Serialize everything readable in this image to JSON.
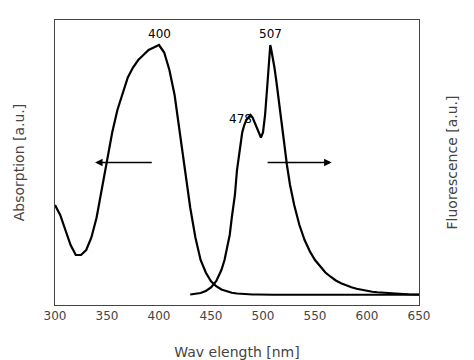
{
  "chart_data": {
    "type": "line",
    "xlabel": "Wav elength [nm]",
    "ylabel": "Absorption [a.u.]",
    "y2label": "Fluorescence [a.u.]",
    "xlim": [
      300,
      650
    ],
    "xticks": [
      300,
      350,
      400,
      450,
      500,
      550,
      600,
      650
    ],
    "ylim": [
      -0.04,
      1.1
    ],
    "yticks": [],
    "y2lim": [
      -0.04,
      1.1
    ],
    "y2ticks": [],
    "tick_labels": "x",
    "grid": false,
    "series": [
      {
        "color": "#000000",
        "x": [
          300,
          305,
          310,
          315,
          320,
          325,
          330,
          335,
          340,
          345,
          350,
          355,
          360,
          365,
          370,
          375,
          380,
          385,
          390,
          395,
          400,
          405,
          410,
          415,
          420,
          425,
          430,
          435,
          440,
          445,
          450,
          455,
          460,
          465,
          470,
          475,
          480,
          485,
          490,
          495,
          500,
          505,
          510,
          520,
          530,
          540,
          550,
          560,
          570,
          580,
          590,
          600,
          610,
          620,
          630,
          640,
          650
        ],
        "values": [
          0.36,
          0.32,
          0.26,
          0.2,
          0.16,
          0.16,
          0.18,
          0.23,
          0.31,
          0.42,
          0.54,
          0.65,
          0.74,
          0.81,
          0.87,
          0.91,
          0.94,
          0.96,
          0.98,
          0.99,
          1.0,
          0.97,
          0.9,
          0.8,
          0.66,
          0.5,
          0.35,
          0.23,
          0.14,
          0.09,
          0.055,
          0.035,
          0.022,
          0.014,
          0.009,
          0.006,
          0.004,
          0.003,
          0.002,
          0.002,
          0.001,
          0.001,
          0.001,
          0.001,
          0.001,
          0.001,
          0.001,
          0.001,
          0.001,
          0.001,
          0.001,
          0.001,
          0.001,
          0.001,
          0.001,
          0.001,
          0.001
        ]
      },
      {
        "color": "#000000",
        "axis": "y2",
        "x": [
          430,
          435,
          440,
          445,
          450,
          455,
          460,
          463,
          465,
          468,
          470,
          473,
          475,
          478,
          480,
          482,
          484,
          486,
          488,
          490,
          492,
          494,
          496,
          498,
          500,
          502,
          504,
          505,
          506,
          507,
          508,
          509,
          511,
          513,
          515,
          517,
          520,
          523,
          526,
          530,
          535,
          540,
          545,
          550,
          555,
          560,
          565,
          570,
          575,
          580,
          585,
          590,
          595,
          600,
          605,
          610,
          615,
          620,
          625,
          630,
          635,
          640,
          645,
          650
        ],
        "values": [
          0.002,
          0.004,
          0.008,
          0.016,
          0.03,
          0.055,
          0.1,
          0.14,
          0.18,
          0.24,
          0.31,
          0.4,
          0.5,
          0.6,
          0.65,
          0.68,
          0.7,
          0.71,
          0.72,
          0.71,
          0.69,
          0.67,
          0.65,
          0.63,
          0.65,
          0.72,
          0.83,
          0.9,
          0.95,
          1.0,
          0.98,
          0.96,
          0.91,
          0.85,
          0.79,
          0.72,
          0.62,
          0.52,
          0.44,
          0.36,
          0.28,
          0.22,
          0.175,
          0.14,
          0.113,
          0.09,
          0.073,
          0.058,
          0.047,
          0.038,
          0.031,
          0.025,
          0.02,
          0.016,
          0.013,
          0.011,
          0.009,
          0.007,
          0.006,
          0.005,
          0.004,
          0.003,
          0.003,
          0.002
        ]
      }
    ],
    "annotations": [
      {
        "x": 400,
        "y": 1.01,
        "text": "400"
      },
      {
        "x": 478,
        "y": 0.67,
        "text": "478"
      },
      {
        "x": 507,
        "y": 1.01,
        "text": "507"
      }
    ]
  }
}
